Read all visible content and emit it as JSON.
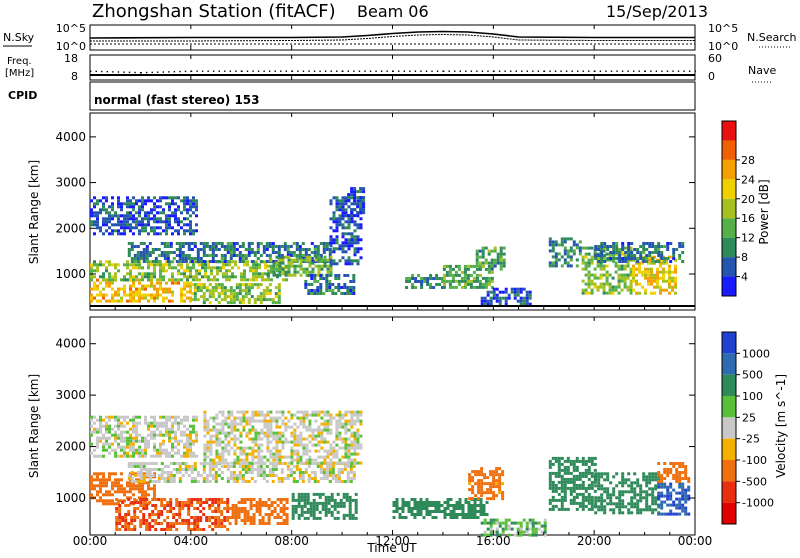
{
  "header": {
    "title": "Zhongshan Station (fitACF)",
    "beam": "Beam 06",
    "date": "15/Sep/2013"
  },
  "noise_panel": {
    "left_label": "N.Sky",
    "left_ticks": [
      "10^5",
      "10^0"
    ],
    "right_label": "N.Search",
    "right_ticks": [
      "10^5",
      "10^0"
    ]
  },
  "freq_panel": {
    "left_label_1": "Freq.",
    "left_label_2": "[MHz]",
    "left_ticks": [
      "18",
      "8"
    ],
    "right_label": "Nave",
    "right_ticks": [
      "60",
      "0"
    ]
  },
  "cpid": {
    "label": "CPID",
    "text": "normal (fast stereo) 153"
  },
  "x_axis": {
    "label": "Time UT",
    "ticks": [
      "00:00",
      "04:00",
      "08:00",
      "12:00",
      "16:00",
      "20:00",
      "00:00"
    ]
  },
  "power_panel": {
    "ylabel": "Slant Range [km]",
    "yticks": [
      "1000",
      "2000",
      "3000",
      "4000"
    ],
    "cbar_label": "Power [dB]",
    "cbar_ticks": [
      "4",
      "8",
      "12",
      "16",
      "20",
      "24",
      "28"
    ],
    "cbar_colors": [
      "#1a1aff",
      "#2456b0",
      "#2f8a5a",
      "#55b04a",
      "#a6c020",
      "#f0d000",
      "#f3a000",
      "#f06000",
      "#e81010"
    ]
  },
  "velocity_panel": {
    "ylabel": "Slant Range [km]",
    "yticks": [
      "1000",
      "2000",
      "3000",
      "4000"
    ],
    "cbar_label": "Velocity [m s^-1]",
    "cbar_ticks": [
      "1000",
      "500",
      "100",
      "25",
      "-25",
      "-100",
      "-500",
      "-1000"
    ],
    "cbar_colors": [
      "#2040d0",
      "#2f6ab0",
      "#2f8a5a",
      "#59c03a",
      "#c8c8c8",
      "#f3b000",
      "#f07010",
      "#e83010",
      "#e00000"
    ]
  },
  "chart_data": [
    {
      "type": "line",
      "panel": "noise",
      "x": [
        0,
        4,
        8,
        10,
        11,
        12,
        13,
        14,
        15,
        16,
        17,
        20,
        24
      ],
      "series": [
        {
          "values": [
            2.4,
            2.5,
            2.5,
            2.6,
            2.9,
            3.3,
            3.6,
            3.7,
            3.6,
            3.2,
            2.6,
            2.5,
            2.5
          ]
        },
        {
          "values": [
            1.8,
            1.8,
            1.9,
            2.0,
            2.3,
            2.7,
            3.0,
            3.1,
            3.0,
            2.6,
            2.0,
            1.9,
            1.9
          ]
        }
      ],
      "xlim": [
        0,
        24
      ],
      "ylim": [
        0,
        5
      ]
    },
    {
      "type": "scatter",
      "panel": "frequency",
      "x": [
        0,
        2,
        4,
        6,
        8,
        10,
        12,
        14,
        16,
        18,
        20,
        22,
        24
      ],
      "y": [
        11.8,
        11.2,
        11.8,
        11.8,
        11.8,
        11.8,
        11.8,
        11.8,
        11.8,
        11.8,
        11.8,
        11.8,
        11.8
      ],
      "xlim": [
        0,
        24
      ],
      "ylim": [
        8,
        18
      ]
    },
    {
      "type": "heatmap",
      "panel": "power",
      "xlim": [
        0,
        24
      ],
      "ylim": [
        300,
        4500
      ],
      "regions": [
        {
          "t0": 0.0,
          "t1": 4.0,
          "r0": 400,
          "r1": 900,
          "dB": 24
        },
        {
          "t0": 0.0,
          "t1": 7.8,
          "r0": 900,
          "r1": 1300,
          "dB": 16
        },
        {
          "t0": 0.0,
          "t1": 4.2,
          "r0": 1900,
          "r1": 2700,
          "dB": 6
        },
        {
          "t0": 4.0,
          "t1": 7.5,
          "r0": 400,
          "r1": 800,
          "dB": 16
        },
        {
          "t0": 1.5,
          "t1": 9.5,
          "r0": 1300,
          "r1": 1700,
          "dB": 8
        },
        {
          "t0": 7.0,
          "t1": 9.5,
          "r0": 1000,
          "r1": 1400,
          "dB": 14
        },
        {
          "t0": 9.5,
          "t1": 10.8,
          "r0": 1200,
          "r1": 2700,
          "dB": 6
        },
        {
          "t0": 10.2,
          "t1": 10.9,
          "r0": 2300,
          "r1": 2900,
          "dB": 5
        },
        {
          "t0": 8.5,
          "t1": 10.5,
          "r0": 600,
          "r1": 1000,
          "dB": 8
        },
        {
          "t0": 12.5,
          "t1": 14.0,
          "r0": 700,
          "r1": 1000,
          "dB": 10
        },
        {
          "t0": 14.0,
          "t1": 16.0,
          "r0": 700,
          "r1": 1200,
          "dB": 14
        },
        {
          "t0": 15.3,
          "t1": 16.4,
          "r0": 1100,
          "r1": 1600,
          "dB": 12
        },
        {
          "t0": 15.5,
          "t1": 17.5,
          "r0": 350,
          "r1": 700,
          "dB": 6
        },
        {
          "t0": 18.2,
          "t1": 19.5,
          "r0": 1200,
          "r1": 1800,
          "dB": 10
        },
        {
          "t0": 19.5,
          "t1": 21.5,
          "r0": 600,
          "r1": 1600,
          "dB": 16
        },
        {
          "t0": 21.5,
          "t1": 23.2,
          "r0": 600,
          "r1": 1400,
          "dB": 22
        },
        {
          "t0": 20.0,
          "t1": 23.5,
          "r0": 1300,
          "r1": 1700,
          "dB": 8
        }
      ]
    },
    {
      "type": "heatmap",
      "panel": "velocity",
      "xlim": [
        0,
        24
      ],
      "ylim": [
        300,
        4500
      ],
      "regions": [
        {
          "t0": 0.0,
          "t1": 2.5,
          "r0": 900,
          "r1": 1500,
          "v": -200
        },
        {
          "t0": 0.0,
          "t1": 4.2,
          "r0": 1800,
          "r1": 2600,
          "v": 0
        },
        {
          "t0": 1.0,
          "t1": 5.5,
          "r0": 400,
          "r1": 1000,
          "v": -300
        },
        {
          "t0": 5.5,
          "t1": 7.8,
          "r0": 500,
          "r1": 1000,
          "v": -150
        },
        {
          "t0": 1.5,
          "t1": 10.5,
          "r0": 1300,
          "r1": 1700,
          "v": 0
        },
        {
          "t0": 4.5,
          "t1": 10.8,
          "r0": 1700,
          "r1": 2700,
          "v": 0
        },
        {
          "t0": 8.0,
          "t1": 10.5,
          "r0": 600,
          "r1": 1100,
          "v": 150
        },
        {
          "t0": 12.0,
          "t1": 15.8,
          "r0": 600,
          "r1": 1000,
          "v": 150
        },
        {
          "t0": 15.0,
          "t1": 16.4,
          "r0": 1000,
          "r1": 1600,
          "v": -100
        },
        {
          "t0": 15.5,
          "t1": 18.0,
          "r0": 300,
          "r1": 600,
          "v": 50
        },
        {
          "t0": 18.2,
          "t1": 20.0,
          "r0": 800,
          "r1": 1800,
          "v": 200
        },
        {
          "t0": 20.0,
          "t1": 22.5,
          "r0": 700,
          "r1": 1500,
          "v": 200
        },
        {
          "t0": 22.5,
          "t1": 23.8,
          "r0": 700,
          "r1": 1300,
          "v": 800
        },
        {
          "t0": 22.5,
          "t1": 23.8,
          "r0": 1300,
          "r1": 1700,
          "v": -150
        }
      ]
    }
  ]
}
